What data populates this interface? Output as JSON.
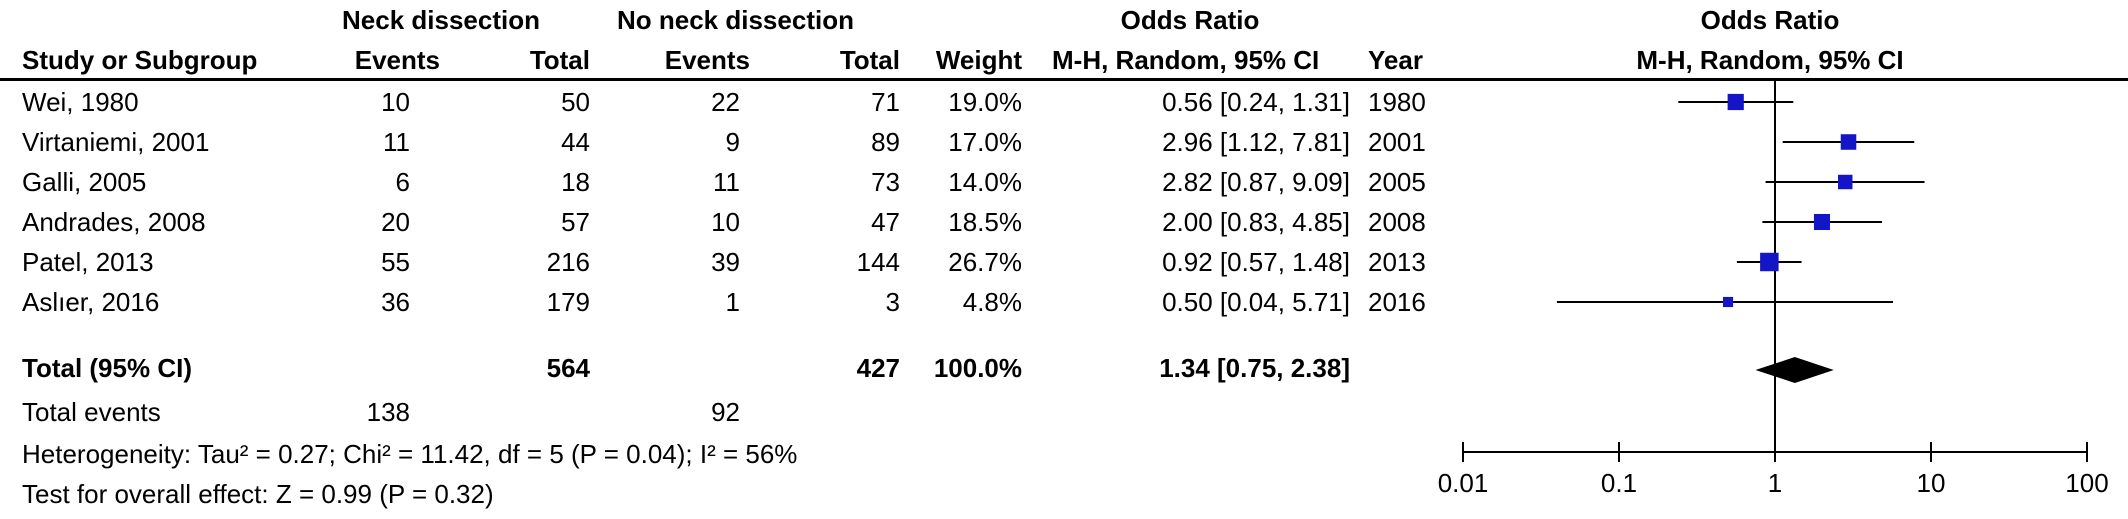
{
  "header": {
    "group_neck": "Neck dissection",
    "group_noneck": "No neck dissection",
    "odds_ratio_col": "Odds Ratio",
    "plot_title": "Odds Ratio",
    "study_col": "Study or Subgroup",
    "events1": "Events",
    "total1": "Total",
    "events2": "Events",
    "total2": "Total",
    "weight": "Weight",
    "method_col": "M-H, Random, 95% CI",
    "year": "Year",
    "plot_method": "M-H, Random, 95% CI"
  },
  "studies": [
    {
      "name": "Wei, 1980",
      "events1": "10",
      "total1": "50",
      "events2": "22",
      "total2": "71",
      "weight": "19.0%",
      "ci_text": "0.56 [0.24, 1.31]",
      "year": "1980"
    },
    {
      "name": "Virtaniemi, 2001",
      "events1": "11",
      "total1": "44",
      "events2": "9",
      "total2": "89",
      "weight": "17.0%",
      "ci_text": "2.96 [1.12, 7.81]",
      "year": "2001"
    },
    {
      "name": "Galli, 2005",
      "events1": "6",
      "total1": "18",
      "events2": "11",
      "total2": "73",
      "weight": "14.0%",
      "ci_text": "2.82 [0.87, 9.09]",
      "year": "2005"
    },
    {
      "name": "Andrades, 2008",
      "events1": "20",
      "total1": "57",
      "events2": "10",
      "total2": "47",
      "weight": "18.5%",
      "ci_text": "2.00 [0.83, 4.85]",
      "year": "2008"
    },
    {
      "name": "Patel, 2013",
      "events1": "55",
      "total1": "216",
      "events2": "39",
      "total2": "144",
      "weight": "26.7%",
      "ci_text": "0.92 [0.57, 1.48]",
      "year": "2013"
    },
    {
      "name": "Aslıer, 2016",
      "events1": "36",
      "total1": "179",
      "events2": "1",
      "total2": "3",
      "weight": "4.8%",
      "ci_text": "0.50 [0.04, 5.71]",
      "year": "2016"
    }
  ],
  "total": {
    "label": "Total (95% CI)",
    "total1": "564",
    "total2": "427",
    "weight": "100.0%",
    "ci_text": "1.34 [0.75, 2.38]"
  },
  "total_events": {
    "label": "Total events",
    "events1": "138",
    "events2": "92"
  },
  "heterogeneity": "Heterogeneity: Tau² = 0.27; Chi² = 11.42, df = 5 (P = 0.04); I² = 56%",
  "overall_effect": "Test for overall effect: Z = 0.99 (P = 0.32)",
  "chart_data": {
    "type": "forest",
    "scale": "log",
    "xlim": [
      0.01,
      100
    ],
    "ticks": [
      0.01,
      0.1,
      1,
      10,
      100
    ],
    "tick_labels": [
      "0.01",
      "0.1",
      "1",
      "10",
      "100"
    ],
    "reference_line": 1,
    "marker_color": "#1515c8",
    "studies": [
      {
        "name": "Wei, 1980",
        "or": 0.56,
        "lo": 0.24,
        "hi": 1.31,
        "weight": 19.0
      },
      {
        "name": "Virtaniemi, 2001",
        "or": 2.96,
        "lo": 1.12,
        "hi": 7.81,
        "weight": 17.0
      },
      {
        "name": "Galli, 2005",
        "or": 2.82,
        "lo": 0.87,
        "hi": 9.09,
        "weight": 14.0
      },
      {
        "name": "Andrades, 2008",
        "or": 2.0,
        "lo": 0.83,
        "hi": 4.85,
        "weight": 18.5
      },
      {
        "name": "Patel, 2013",
        "or": 0.92,
        "lo": 0.57,
        "hi": 1.48,
        "weight": 26.7
      },
      {
        "name": "Aslıer, 2016",
        "or": 0.5,
        "lo": 0.04,
        "hi": 5.71,
        "weight": 4.8
      }
    ],
    "pooled": {
      "or": 1.34,
      "lo": 0.75,
      "hi": 2.38
    }
  }
}
